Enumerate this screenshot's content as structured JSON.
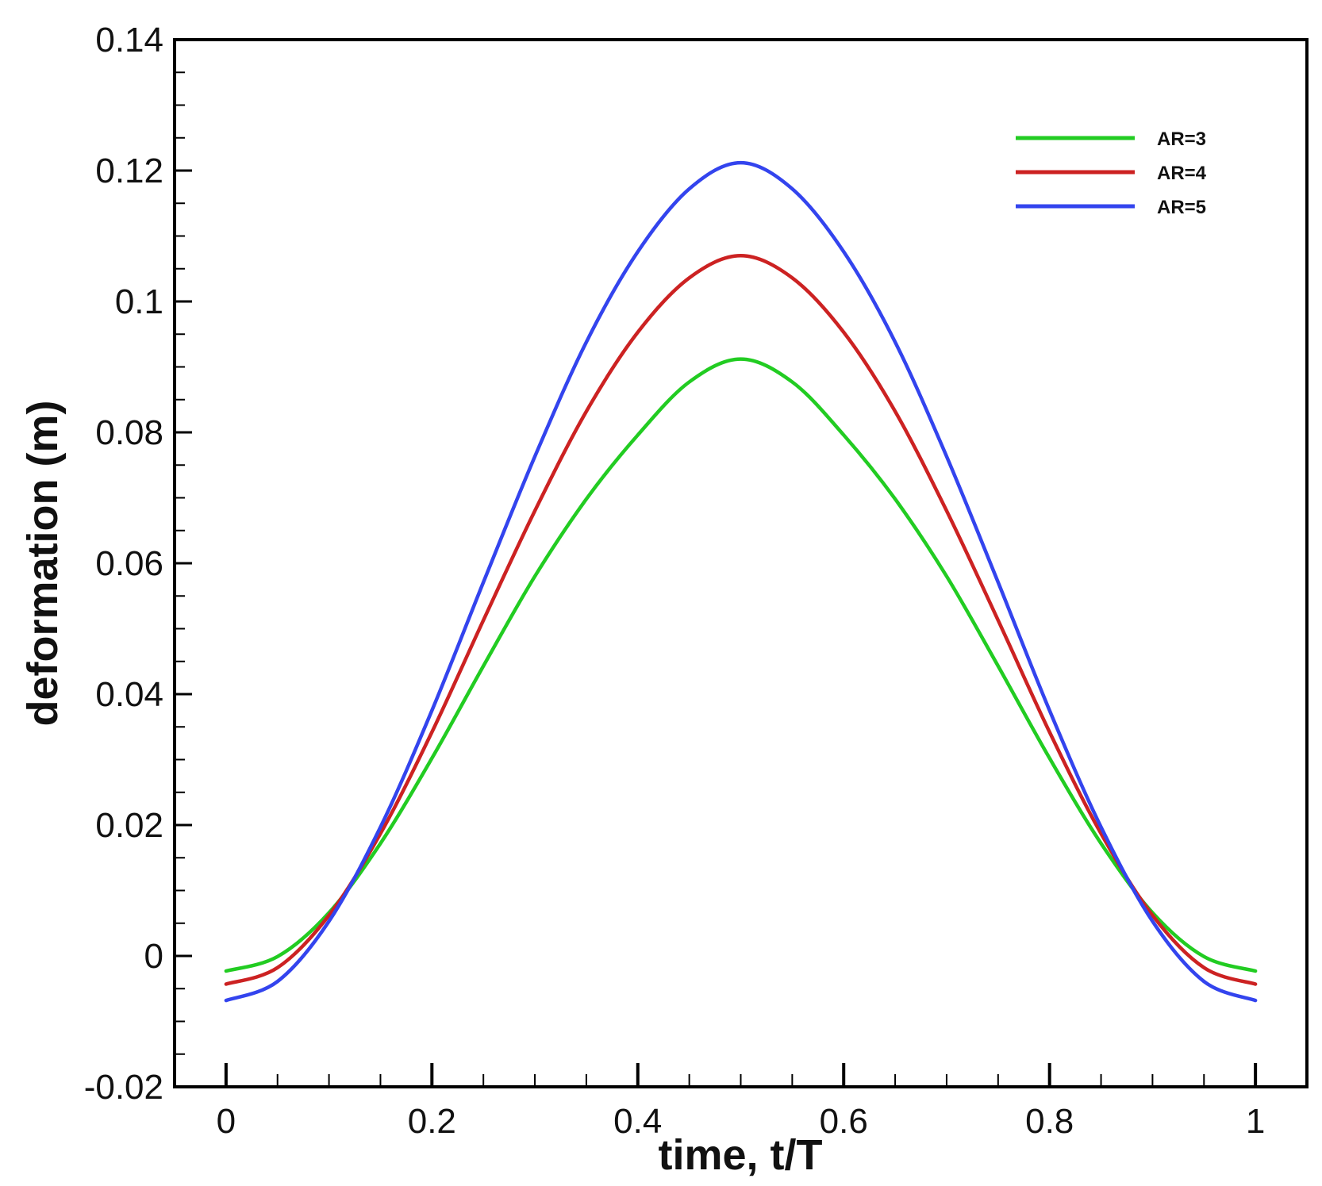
{
  "chart_data": {
    "type": "line",
    "title": "",
    "xlabel": "time, t/T",
    "ylabel": "deformation (m)",
    "xlim": [
      -0.05,
      1.05
    ],
    "ylim": [
      -0.02,
      0.14
    ],
    "x_ticks": [
      0,
      0.2,
      0.4,
      0.6,
      0.8,
      1
    ],
    "x_tick_labels": [
      "0",
      "0.2",
      "0.4",
      "0.6",
      "0.8",
      "1"
    ],
    "y_ticks": [
      -0.02,
      0,
      0.02,
      0.04,
      0.06,
      0.08,
      0.1,
      0.12,
      0.14
    ],
    "y_tick_labels": [
      "-0.02",
      "0",
      "0.02",
      "0.04",
      "0.06",
      "0.08",
      "0.1",
      "0.12",
      "0.14"
    ],
    "grid": false,
    "legend_position": "top-right",
    "x": [
      0,
      0.05,
      0.1,
      0.15,
      0.2,
      0.25,
      0.3,
      0.35,
      0.4,
      0.45,
      0.5,
      0.55,
      0.6,
      0.65,
      0.7,
      0.75,
      0.8,
      0.85,
      0.9,
      0.95,
      1
    ],
    "series": [
      {
        "name": "AR=3",
        "color": "#22cc22",
        "values": [
          -0.0023,
          -0.0001,
          0.0066,
          0.0172,
          0.0302,
          0.0443,
          0.058,
          0.0698,
          0.0796,
          0.0877,
          0.0912,
          0.0877,
          0.0796,
          0.0698,
          0.058,
          0.0443,
          0.0302,
          0.0172,
          0.0066,
          -0.0001,
          -0.0023
        ]
      },
      {
        "name": "AR=4",
        "color": "#cc2222",
        "values": [
          -0.0043,
          -0.0018,
          0.0062,
          0.0187,
          0.0342,
          0.0513,
          0.068,
          0.0832,
          0.0953,
          0.1036,
          0.107,
          0.1036,
          0.0953,
          0.0832,
          0.068,
          0.0513,
          0.0342,
          0.0187,
          0.0062,
          -0.0018,
          -0.0043
        ]
      },
      {
        "name": "AR=5",
        "color": "#3344ee",
        "values": [
          -0.0068,
          -0.0039,
          0.0053,
          0.0197,
          0.0375,
          0.0571,
          0.0763,
          0.0938,
          0.1076,
          0.1172,
          0.1212,
          0.1172,
          0.1076,
          0.0938,
          0.0763,
          0.0571,
          0.0375,
          0.0197,
          0.0053,
          -0.0039,
          -0.0068
        ]
      }
    ]
  }
}
